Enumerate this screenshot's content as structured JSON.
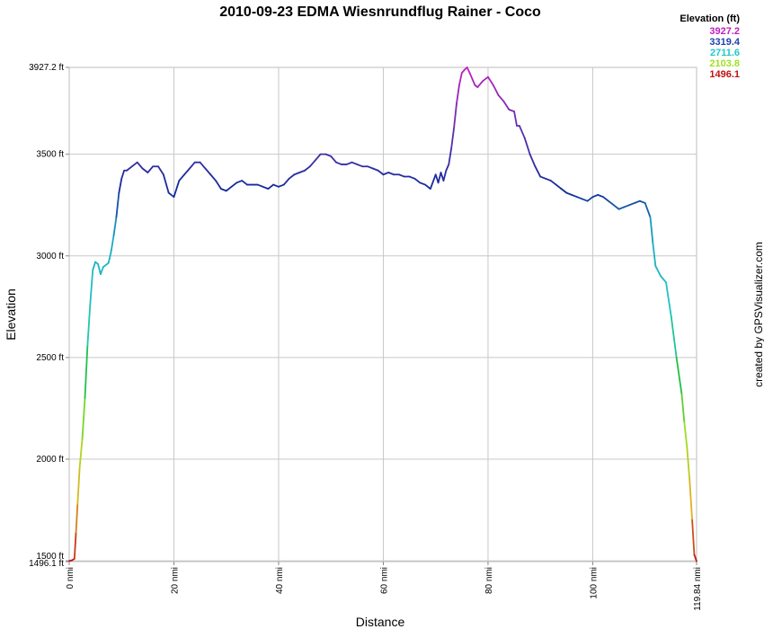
{
  "chart_data": {
    "type": "line",
    "title": "2010-09-23 EDMA Wiesnrundflug Rainer - Coco",
    "xlabel": "Distance",
    "ylabel": "Elevation",
    "credit": "created by GPSVisualizer.com",
    "xlim": [
      0,
      119.84
    ],
    "ylim": [
      1496.1,
      3927.2
    ],
    "x_ticks": [
      {
        "value": 0,
        "label": "0 nmi"
      },
      {
        "value": 20,
        "label": "20 nmi"
      },
      {
        "value": 40,
        "label": "40 nmi"
      },
      {
        "value": 60,
        "label": "60 nmi"
      },
      {
        "value": 80,
        "label": "80 nmi"
      },
      {
        "value": 100,
        "label": "100 nmi"
      },
      {
        "value": 119.84,
        "label": "119.84 nmi"
      }
    ],
    "y_ticks": [
      {
        "value": 1496.1,
        "label": "1496.1 ft"
      },
      {
        "value": 1500,
        "label": "1500 ft"
      },
      {
        "value": 2000,
        "label": "2000 ft"
      },
      {
        "value": 2500,
        "label": "2500 ft"
      },
      {
        "value": 3000,
        "label": "3000 ft"
      },
      {
        "value": 3500,
        "label": "3500 ft"
      },
      {
        "value": 3927.2,
        "label": "3927.2 ft"
      }
    ],
    "grid": true,
    "legend": {
      "title": "Elevation (ft)",
      "placement": "top-right",
      "entries": [
        {
          "label": "3927.2",
          "color": "#c020c0"
        },
        {
          "label": "3319.4",
          "color": "#2040b0"
        },
        {
          "label": "2711.6",
          "color": "#20c8c8"
        },
        {
          "label": "2103.8",
          "color": "#a0e020"
        },
        {
          "label": "1496.1",
          "color": "#c01010"
        }
      ]
    },
    "color_scale": [
      {
        "value": 1496.1,
        "color": "#c01010"
      },
      {
        "value": 1800,
        "color": "#e0b020"
      },
      {
        "value": 2103.8,
        "color": "#a0e020"
      },
      {
        "value": 2400,
        "color": "#20c040"
      },
      {
        "value": 2711.6,
        "color": "#20c8c8"
      },
      {
        "value": 3100,
        "color": "#1aa8c0"
      },
      {
        "value": 3319.4,
        "color": "#102a9a"
      },
      {
        "value": 3620,
        "color": "#6030b0"
      },
      {
        "value": 3927.2,
        "color": "#c020c0"
      }
    ],
    "series": [
      {
        "x": [
          0,
          0.5,
          1,
          1.3,
          1.6,
          2,
          2.5,
          3,
          3.5,
          4,
          4.5,
          5,
          5.5,
          6,
          6.5,
          7,
          7.5,
          8,
          8.5,
          9,
          9.5,
          10,
          10.5,
          11,
          12,
          13,
          14,
          15,
          16,
          17,
          18,
          19,
          20,
          21,
          22,
          23,
          24,
          25,
          26,
          27,
          28,
          29,
          30,
          31,
          32,
          33,
          34,
          35,
          36,
          37,
          38,
          39,
          40,
          41,
          42,
          43,
          44,
          45,
          46,
          47,
          48,
          49,
          50,
          51,
          52,
          53,
          54,
          55,
          56,
          57,
          58,
          59,
          60,
          61,
          62,
          63,
          64,
          65,
          66,
          67,
          68,
          69,
          70,
          70.5,
          71,
          71.5,
          72,
          72.5,
          73,
          73.5,
          74,
          74.5,
          75,
          75.5,
          76,
          76.5,
          77,
          77.5,
          78,
          79,
          80,
          81,
          82,
          83,
          84,
          85,
          85.5,
          86,
          87,
          88,
          89,
          90,
          91,
          92,
          93,
          94,
          95,
          96,
          97,
          98,
          99,
          100,
          101,
          102,
          103,
          104,
          105,
          106,
          107,
          108,
          109,
          110,
          111,
          111.5,
          112,
          113,
          114,
          115,
          116,
          117,
          117.5,
          118,
          118.5,
          119,
          119.4,
          119.84
        ],
        "y": [
          1500,
          1502,
          1510,
          1640,
          1780,
          1960,
          2100,
          2300,
          2560,
          2760,
          2930,
          2970,
          2960,
          2910,
          2945,
          2955,
          2965,
          3020,
          3100,
          3190,
          3310,
          3380,
          3420,
          3420,
          3440,
          3460,
          3430,
          3410,
          3440,
          3440,
          3400,
          3310,
          3290,
          3370,
          3400,
          3430,
          3460,
          3460,
          3430,
          3400,
          3370,
          3330,
          3320,
          3340,
          3360,
          3370,
          3350,
          3350,
          3350,
          3340,
          3330,
          3350,
          3340,
          3350,
          3380,
          3400,
          3410,
          3420,
          3440,
          3470,
          3500,
          3500,
          3490,
          3460,
          3450,
          3450,
          3460,
          3450,
          3440,
          3440,
          3430,
          3420,
          3400,
          3410,
          3400,
          3400,
          3390,
          3390,
          3380,
          3360,
          3350,
          3330,
          3400,
          3360,
          3410,
          3370,
          3420,
          3450,
          3530,
          3630,
          3750,
          3840,
          3900,
          3915,
          3927,
          3900,
          3870,
          3840,
          3830,
          3860,
          3880,
          3840,
          3790,
          3760,
          3720,
          3710,
          3640,
          3640,
          3580,
          3500,
          3440,
          3390,
          3380,
          3370,
          3350,
          3330,
          3310,
          3300,
          3290,
          3280,
          3270,
          3290,
          3300,
          3290,
          3270,
          3250,
          3230,
          3240,
          3250,
          3260,
          3270,
          3260,
          3190,
          3060,
          2950,
          2900,
          2870,
          2700,
          2500,
          2320,
          2180,
          2060,
          1900,
          1700,
          1530,
          1498
        ]
      }
    ]
  }
}
